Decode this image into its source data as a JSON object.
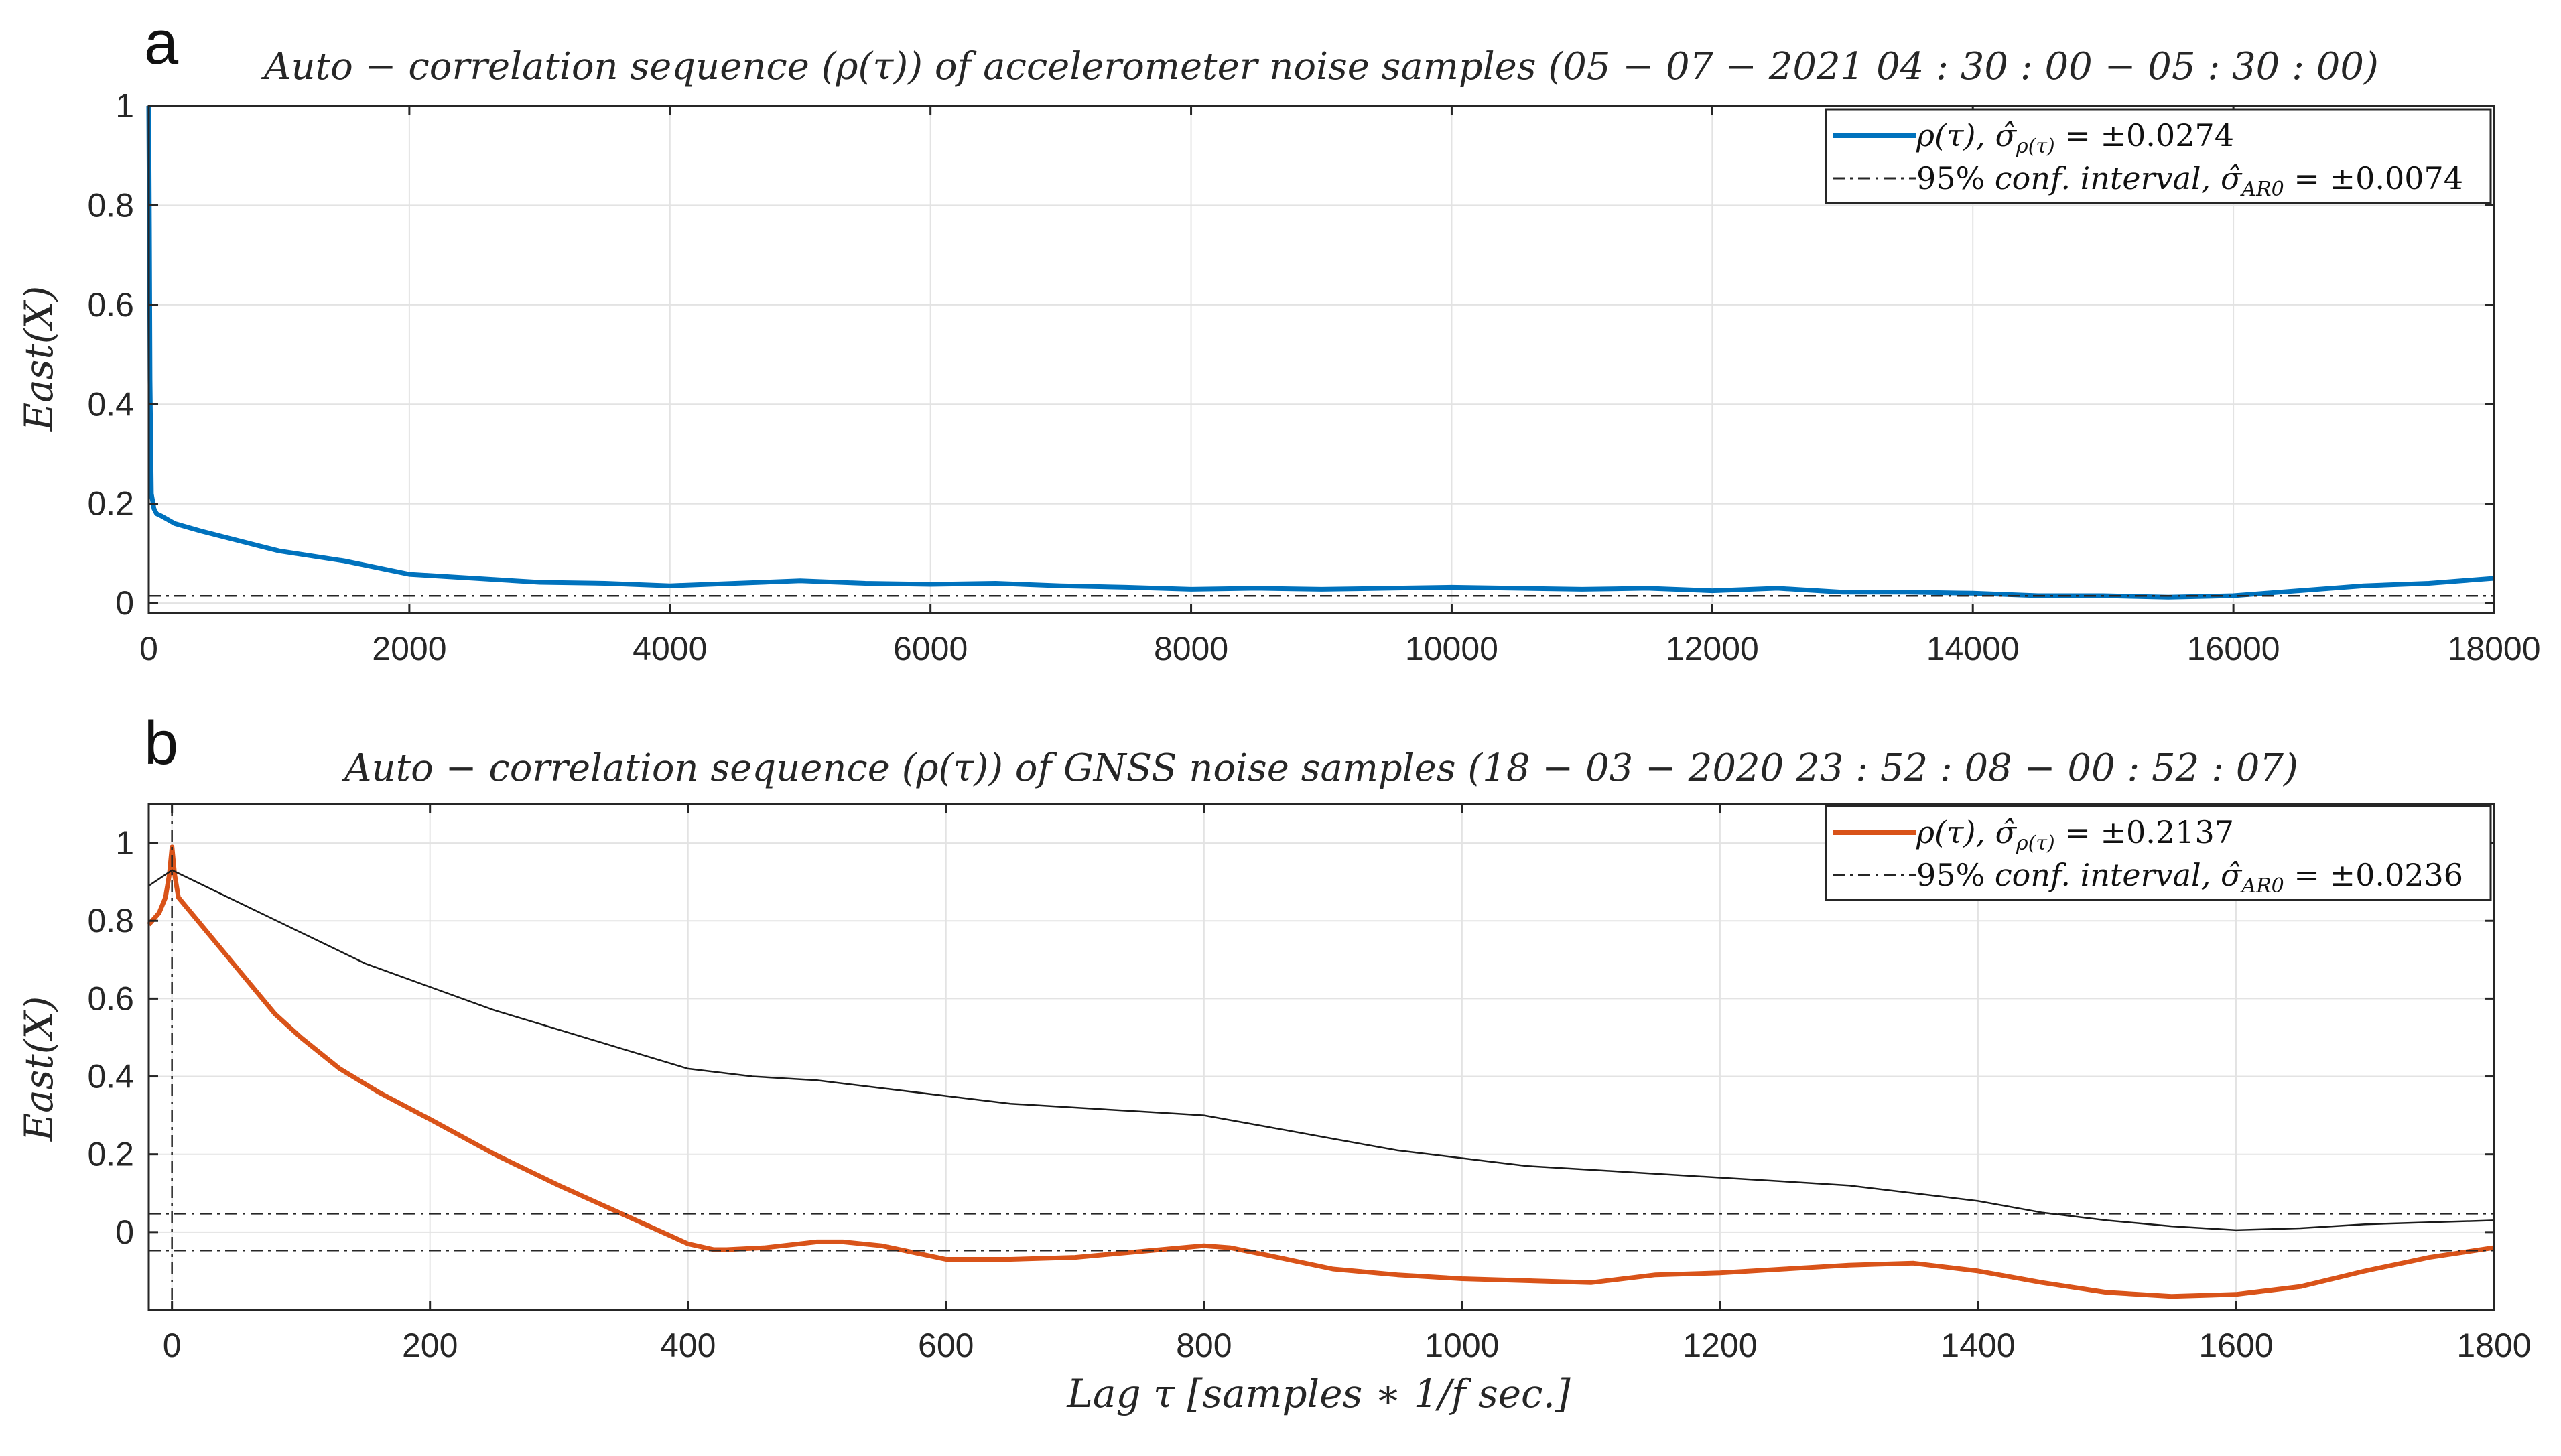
{
  "figure": {
    "xlabel": "Lag τ [samples ∗ 1/f sec.]"
  },
  "chart_data": [
    {
      "type": "line",
      "panel": "a",
      "title": "Auto − correlation sequence (ρ(τ)) of accelerometer noise samples (05 − 07 − 2021  04 : 30 : 00 − 05 : 30 : 00)",
      "ylabel": "East(X)",
      "xlabel": "",
      "xlim": [
        0,
        18000
      ],
      "ylim": [
        -0.02,
        1
      ],
      "xticks": [
        0,
        2000,
        4000,
        6000,
        8000,
        10000,
        12000,
        14000,
        16000,
        18000
      ],
      "yticks": [
        0,
        0.2,
        0.4,
        0.6,
        0.8,
        1
      ],
      "ytick_labels": [
        "0",
        "0.2",
        "0.4",
        "0.6",
        "0.8",
        "1"
      ],
      "grid": true,
      "legend_position": "top-right",
      "colors": {
        "rho": "#0072BD",
        "conf": "#262626"
      },
      "series": [
        {
          "name": "ρ(τ), σ̂ρ(τ) = ±0.0274",
          "style": "solid",
          "x": [
            0,
            5,
            10,
            20,
            40,
            60,
            100,
            200,
            400,
            700,
            1000,
            1500,
            2000,
            2500,
            3000,
            3500,
            4000,
            4500,
            5000,
            5500,
            6000,
            6500,
            7000,
            7500,
            8000,
            8500,
            9000,
            9500,
            10000,
            10500,
            11000,
            11500,
            12000,
            12500,
            13000,
            13500,
            14000,
            14500,
            15000,
            15500,
            16000,
            16500,
            17000,
            17500,
            18000
          ],
          "values": [
            1,
            0.75,
            0.45,
            0.22,
            0.19,
            0.18,
            0.175,
            0.16,
            0.145,
            0.125,
            0.105,
            0.085,
            0.058,
            0.05,
            0.042,
            0.04,
            0.035,
            0.04,
            0.045,
            0.04,
            0.038,
            0.04,
            0.035,
            0.032,
            0.028,
            0.03,
            0.028,
            0.03,
            0.032,
            0.03,
            0.028,
            0.03,
            0.025,
            0.03,
            0.022,
            0.022,
            0.02,
            0.015,
            0.015,
            0.012,
            0.015,
            0.025,
            0.035,
            0.04,
            0.05
          ]
        },
        {
          "name": "95% conf. interval, σ̂AR0 = ±0.0074",
          "style": "dashdot",
          "x": [
            0,
            18000
          ],
          "values": [
            0.0148,
            0.0148
          ]
        }
      ]
    },
    {
      "type": "line",
      "panel": "b",
      "title": "Auto − correlation sequence (ρ(τ)) of GNSS noise samples (18 − 03 − 2020  23 : 52 : 08 − 00 : 52 : 07)",
      "ylabel": "East(X)",
      "xlabel": "Lag τ [samples ∗ 1/f sec.]",
      "xlim": [
        -18,
        1800
      ],
      "ylim": [
        -0.2,
        1.1
      ],
      "xticks": [
        0,
        200,
        400,
        600,
        800,
        1000,
        1200,
        1400,
        1600,
        1800
      ],
      "yticks": [
        0,
        0.2,
        0.4,
        0.6,
        0.8,
        1
      ],
      "ytick_labels": [
        "0",
        "0.2",
        "0.4",
        "0.6",
        "0.8",
        "1"
      ],
      "grid": true,
      "legend_position": "top-right",
      "colors": {
        "rho": "#D95319",
        "conf": "#262626",
        "thin": "#1a1a1a"
      },
      "series": [
        {
          "name": "ρ(τ), σ̂ρ(τ) = ±0.2137",
          "style": "solid",
          "x": [
            -18,
            -10,
            -5,
            -2,
            0,
            2,
            5,
            10,
            20,
            40,
            60,
            80,
            100,
            130,
            160,
            200,
            250,
            300,
            340,
            360,
            380,
            400,
            420,
            430,
            460,
            500,
            520,
            550,
            600,
            650,
            700,
            750,
            800,
            820,
            850,
            900,
            950,
            1000,
            1050,
            1100,
            1150,
            1200,
            1250,
            1300,
            1350,
            1400,
            1450,
            1500,
            1550,
            1600,
            1650,
            1700,
            1750,
            1800
          ],
          "values": [
            0.79,
            0.82,
            0.86,
            0.92,
            0.99,
            0.92,
            0.86,
            0.84,
            0.8,
            0.72,
            0.64,
            0.56,
            0.5,
            0.42,
            0.36,
            0.29,
            0.2,
            0.12,
            0.06,
            0.03,
            0.0,
            -0.03,
            -0.045,
            -0.045,
            -0.04,
            -0.025,
            -0.025,
            -0.035,
            -0.07,
            -0.07,
            -0.065,
            -0.05,
            -0.035,
            -0.04,
            -0.06,
            -0.095,
            -0.11,
            -0.12,
            -0.125,
            -0.13,
            -0.11,
            -0.105,
            -0.095,
            -0.085,
            -0.08,
            -0.1,
            -0.13,
            -0.155,
            -0.165,
            -0.16,
            -0.14,
            -0.1,
            -0.065,
            -0.04
          ]
        },
        {
          "name": "95% conf. interval, σ̂AR0 = ±0.0236",
          "style": "dashdot",
          "x": [
            -18,
            1800
          ],
          "values": [
            0.0472,
            0.0472
          ],
          "lower": [
            -0.0472,
            -0.0472
          ]
        },
        {
          "name": "",
          "style": "thin",
          "x": [
            -18,
            0,
            50,
            100,
            150,
            200,
            250,
            300,
            350,
            400,
            450,
            500,
            550,
            600,
            650,
            700,
            750,
            800,
            850,
            900,
            950,
            1000,
            1050,
            1100,
            1150,
            1200,
            1250,
            1300,
            1350,
            1400,
            1450,
            1500,
            1550,
            1600,
            1650,
            1700,
            1750,
            1800
          ],
          "values": [
            0.89,
            0.93,
            0.85,
            0.77,
            0.69,
            0.63,
            0.57,
            0.52,
            0.47,
            0.42,
            0.4,
            0.39,
            0.37,
            0.35,
            0.33,
            0.32,
            0.31,
            0.3,
            0.27,
            0.24,
            0.21,
            0.19,
            0.17,
            0.16,
            0.15,
            0.14,
            0.13,
            0.12,
            0.1,
            0.08,
            0.05,
            0.03,
            0.015,
            0.005,
            0.01,
            0.02,
            0.025,
            0.03
          ]
        }
      ]
    }
  ],
  "legends": [
    {
      "line1": {
        "rho": "ρ(τ),  ",
        "sigma": "σ̂",
        "sub": "ρ(τ)",
        "rest": " = ±0.0274"
      },
      "line2": {
        "pre": "95% ",
        "italic": "conf. interval,",
        "sigma": " σ̂",
        "sub": "AR0",
        "rest": " = ±0.0074"
      }
    },
    {
      "line1": {
        "rho": "ρ(τ),  ",
        "sigma": "σ̂",
        "sub": "ρ(τ)",
        "rest": " = ±0.2137"
      },
      "line2": {
        "pre": "95% ",
        "italic": "conf. interval,",
        "sigma": " σ̂",
        "sub": "AR0",
        "rest": " = ±0.0236"
      }
    }
  ]
}
